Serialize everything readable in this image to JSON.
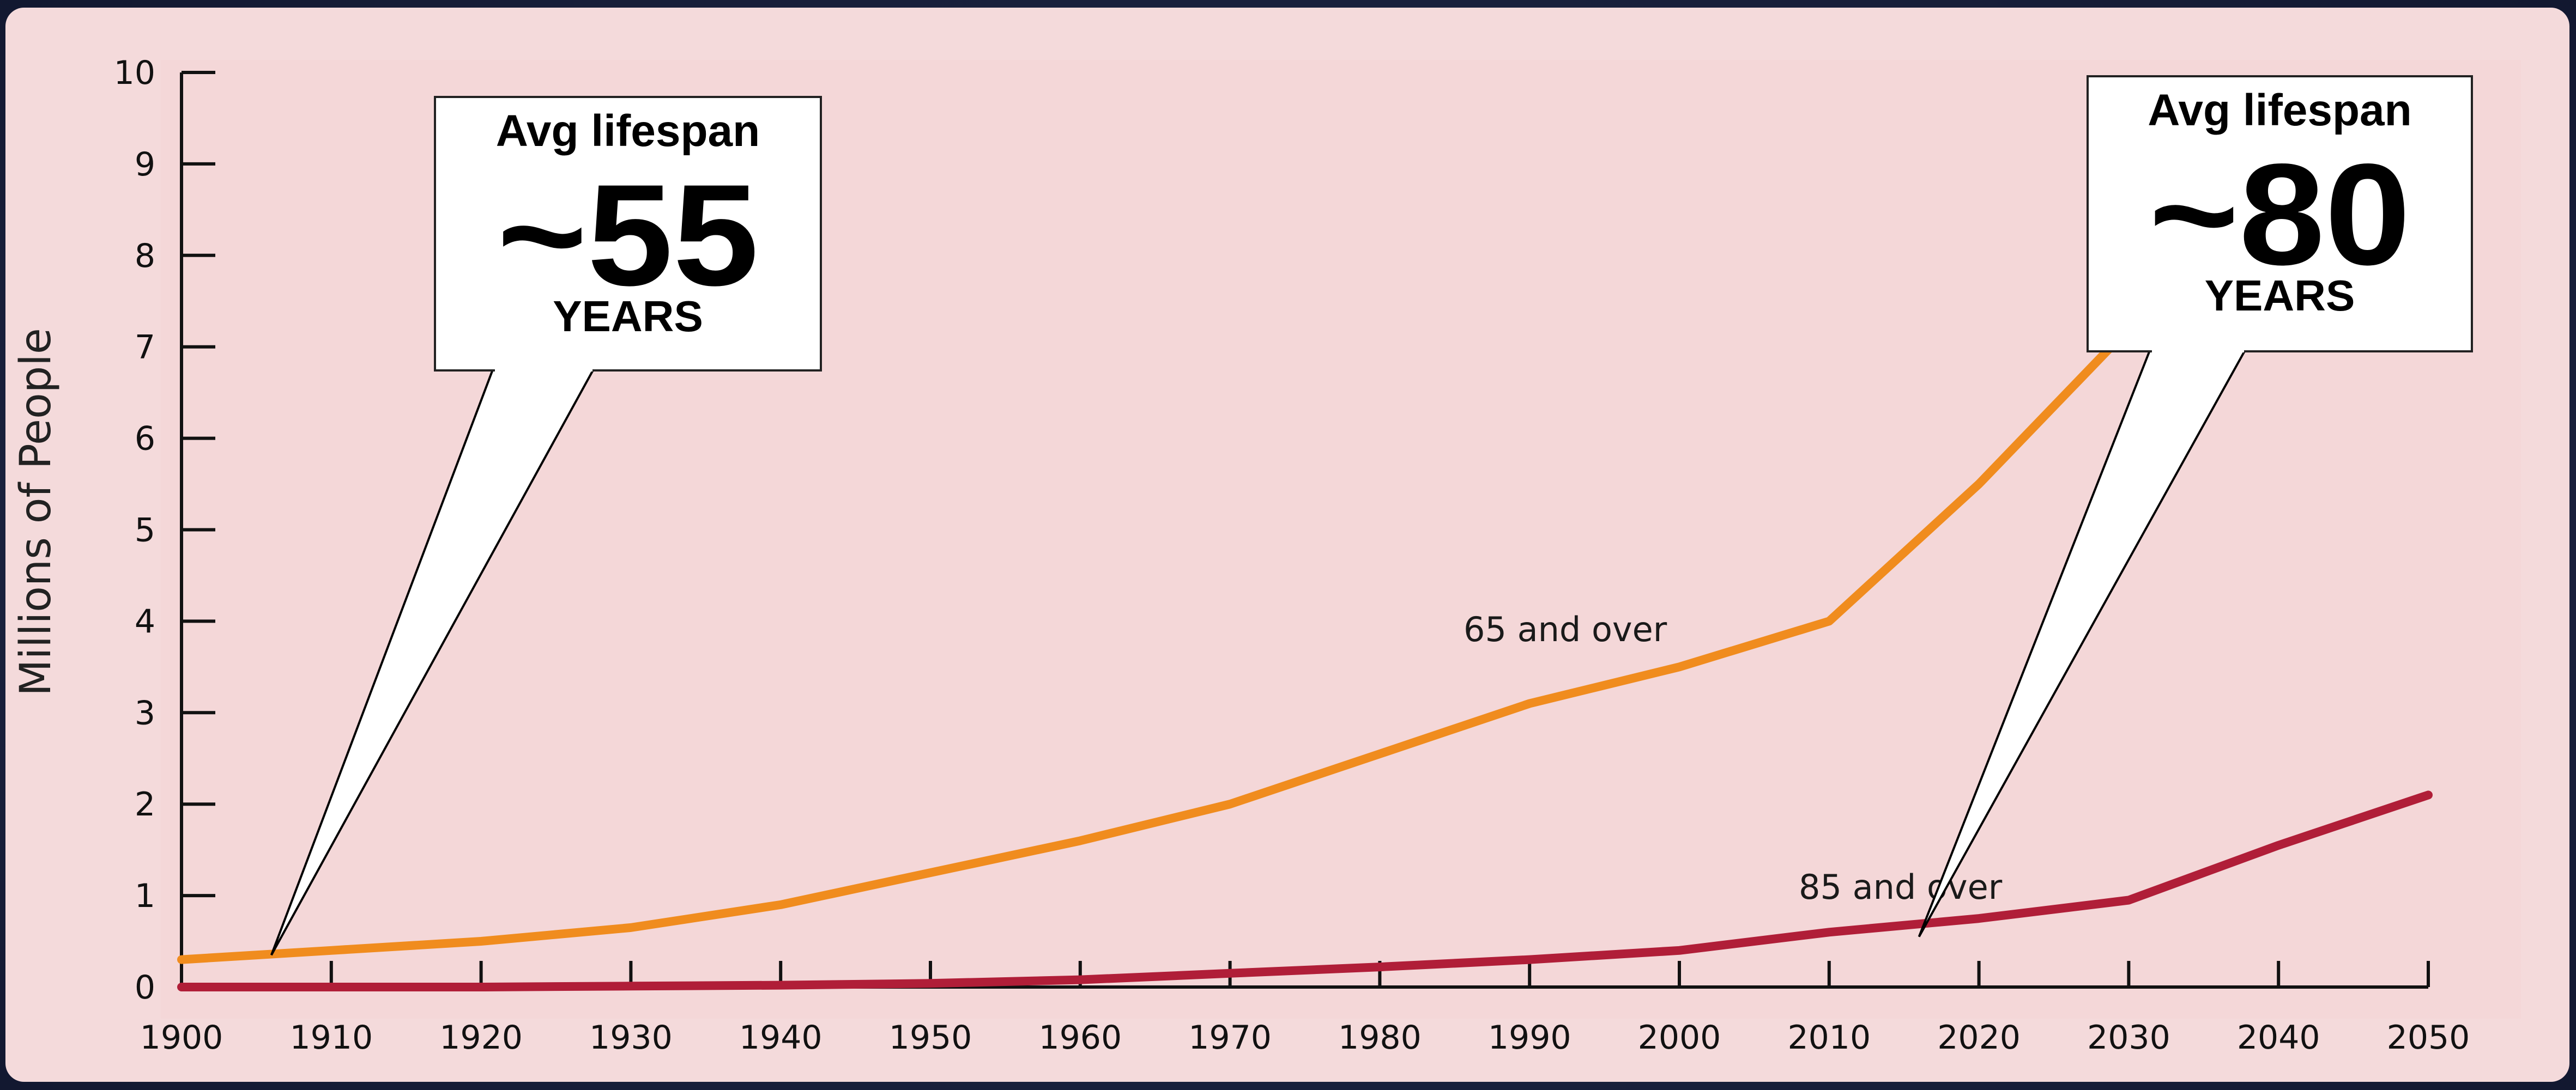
{
  "chart_data": {
    "type": "line",
    "ylabel": "Millions of People",
    "xlabel": "",
    "title": "",
    "x": [
      1900,
      1910,
      1920,
      1930,
      1940,
      1950,
      1960,
      1970,
      1980,
      1990,
      2000,
      2010,
      2020,
      2030,
      2040,
      2050
    ],
    "x_ticks": [
      "1900",
      "1910",
      "1920",
      "1930",
      "1940",
      "1950",
      "1960",
      "1970",
      "1980",
      "1990",
      "2000",
      "2010",
      "2020",
      "2030",
      "2040",
      "2050"
    ],
    "y_ticks": [
      "0",
      "1",
      "2",
      "3",
      "4",
      "5",
      "6",
      "7",
      "8",
      "9",
      "10"
    ],
    "xlim": [
      1900,
      2050
    ],
    "ylim": [
      0,
      10
    ],
    "grid": false,
    "series": [
      {
        "name": "65 and over",
        "color": "#f08c1e",
        "x": [
          1900,
          1910,
          1920,
          1930,
          1940,
          1950,
          1960,
          1970,
          1980,
          1990,
          2000,
          2010,
          2020,
          2030
        ],
        "values": [
          0.3,
          0.4,
          0.5,
          0.65,
          0.9,
          1.25,
          1.6,
          2.0,
          2.55,
          3.1,
          3.5,
          4.0,
          5.5,
          7.2
        ]
      },
      {
        "name": "85 and over",
        "color": "#b01e38",
        "x": [
          1900,
          1910,
          1920,
          1930,
          1940,
          1950,
          1960,
          1970,
          1980,
          1990,
          2000,
          2010,
          2020,
          2030,
          2040,
          2050
        ],
        "values": [
          0.0,
          0.0,
          0.0,
          0.01,
          0.02,
          0.04,
          0.08,
          0.15,
          0.22,
          0.3,
          0.4,
          0.6,
          0.75,
          0.95,
          1.55,
          2.1
        ]
      }
    ],
    "annotations": [
      {
        "title": "Avg lifespan",
        "big": "~55",
        "unit": "YEARS",
        "pointer_x": 1906,
        "pointer_y": 0.35
      },
      {
        "title": "Avg lifespan",
        "big": "~80",
        "unit": "YEARS",
        "pointer_x": 2016,
        "pointer_y": 0.55
      }
    ]
  },
  "colors": {
    "plot_background": "#f4dadb",
    "axis": "#111111"
  }
}
